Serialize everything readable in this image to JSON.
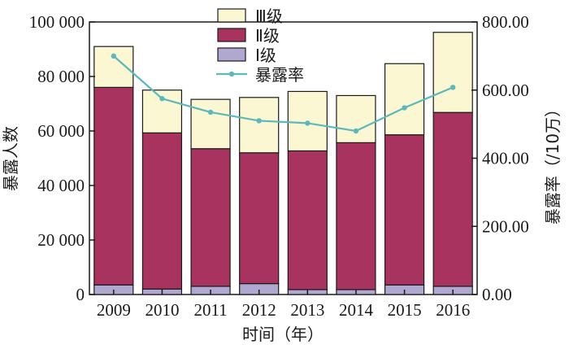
{
  "chart_data": {
    "type": "bar",
    "stacked": true,
    "categories": [
      "2009",
      "2010",
      "2011",
      "2012",
      "2013",
      "2014",
      "2015",
      "2016"
    ],
    "series": [
      {
        "name": "Ⅰ级",
        "axis": "left",
        "type": "bar",
        "color": "#b0a8d0",
        "values": [
          3500,
          2000,
          3000,
          4000,
          1800,
          1800,
          3500,
          3000
        ]
      },
      {
        "name": "Ⅱ级",
        "axis": "left",
        "type": "bar",
        "color": "#a8335e",
        "values": [
          72500,
          57300,
          50500,
          48000,
          50900,
          53900,
          55100,
          63800
        ]
      },
      {
        "name": "Ⅲ级",
        "axis": "left",
        "type": "bar",
        "color": "#fbf7d2",
        "values": [
          15000,
          15700,
          18100,
          20300,
          21800,
          17300,
          26100,
          29400
        ]
      },
      {
        "name": "暴露率",
        "axis": "right",
        "type": "line",
        "color": "#5cb8bc",
        "values": [
          700,
          575,
          535,
          510,
          503,
          480,
          548,
          608
        ]
      }
    ],
    "xlabel": "时间（年）",
    "ylabel": "暴露人数",
    "y2label": "暴露率（/10万）",
    "ylim": [
      0,
      100000
    ],
    "y2lim": [
      0,
      800
    ],
    "yticks": [
      0,
      20000,
      40000,
      60000,
      80000,
      100000
    ],
    "ytick_labels": [
      "0",
      "20 000",
      "40 000",
      "60 000",
      "80 000",
      "100 000"
    ],
    "y2ticks": [
      0,
      200,
      400,
      600,
      800
    ],
    "y2tick_labels": [
      "0.00",
      "200.00",
      "400.00",
      "600.00",
      "800.00"
    ],
    "legend": {
      "placement": "top-center",
      "entries": [
        "Ⅲ级",
        "Ⅱ级",
        "Ⅰ级",
        "暴露率"
      ]
    },
    "grid": false
  }
}
